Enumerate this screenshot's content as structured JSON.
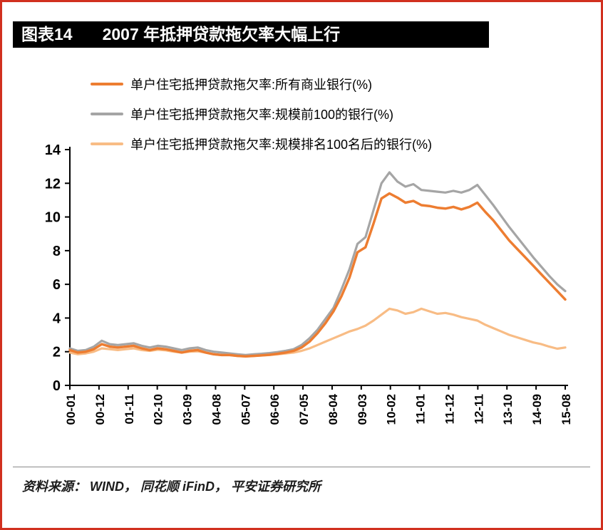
{
  "page": {
    "title_label": "图表14",
    "title_text": "2007 年抵押贷款拖欠率大幅上行",
    "source_text": "资料来源： WIND， 同花顺 iFinD， 平安证券研究所"
  },
  "colors": {
    "frame": "#d1301f",
    "title_bg": "#000000",
    "title_fg": "#ffffff",
    "axis": "#000000",
    "divider": "#8a8a8a"
  },
  "chart_data": {
    "type": "line",
    "title": "2007 年抵押贷款拖欠率大幅上行",
    "ylim": [
      0,
      14
    ],
    "y_ticks": [
      0,
      2,
      4,
      6,
      8,
      10,
      12,
      14
    ],
    "x_tick_labels": [
      "00-01",
      "00-12",
      "01-11",
      "02-10",
      "03-09",
      "04-08",
      "05-07",
      "06-06",
      "07-05",
      "08-04",
      "09-03",
      "10-02",
      "11-01",
      "11-12",
      "12-11",
      "13-10",
      "14-09",
      "15-08"
    ],
    "grid": false,
    "legend_position": "top-left",
    "series": [
      {
        "name": "单户住宅抵押贷款拖欠率:所有商业银行(%)",
        "color": "#ED7D31",
        "width": 3.5,
        "values": [
          2.1,
          1.95,
          2.0,
          2.15,
          2.45,
          2.3,
          2.25,
          2.3,
          2.35,
          2.2,
          2.1,
          2.2,
          2.15,
          2.05,
          1.95,
          2.05,
          2.1,
          1.95,
          1.85,
          1.8,
          1.8,
          1.75,
          1.72,
          1.75,
          1.78,
          1.82,
          1.88,
          1.95,
          2.05,
          2.25,
          2.6,
          3.1,
          3.7,
          4.4,
          5.3,
          6.4,
          7.9,
          8.2,
          9.6,
          11.1,
          11.4,
          11.15,
          10.85,
          10.95,
          10.7,
          10.65,
          10.55,
          10.5,
          10.6,
          10.45,
          10.6,
          10.85,
          10.3,
          9.8,
          9.2,
          8.6,
          8.1,
          7.6,
          7.1,
          6.6,
          6.1,
          5.6,
          5.1
        ]
      },
      {
        "name": "单户住宅抵押贷款拖欠率:规模前100的银行(%)",
        "color": "#A5A5A5",
        "width": 3.2,
        "values": [
          2.2,
          2.05,
          2.1,
          2.3,
          2.65,
          2.45,
          2.4,
          2.45,
          2.5,
          2.35,
          2.25,
          2.35,
          2.3,
          2.2,
          2.1,
          2.2,
          2.25,
          2.1,
          2.0,
          1.95,
          1.9,
          1.85,
          1.8,
          1.85,
          1.88,
          1.92,
          1.98,
          2.05,
          2.15,
          2.4,
          2.8,
          3.3,
          3.95,
          4.6,
          5.7,
          6.9,
          8.4,
          8.8,
          10.4,
          12.0,
          12.65,
          12.1,
          11.8,
          11.95,
          11.6,
          11.55,
          11.5,
          11.45,
          11.55,
          11.45,
          11.6,
          11.9,
          11.3,
          10.7,
          10.05,
          9.4,
          8.8,
          8.2,
          7.6,
          7.05,
          6.5,
          6.0,
          5.6
        ]
      },
      {
        "name": "单户住宅抵押贷款拖欠率:规模排名100名后的银行(%)",
        "color": "#F8BC85",
        "width": 3.2,
        "values": [
          1.95,
          1.85,
          1.9,
          2.0,
          2.2,
          2.15,
          2.1,
          2.15,
          2.2,
          2.1,
          2.05,
          2.12,
          2.08,
          2.0,
          1.95,
          2.0,
          2.02,
          1.95,
          1.85,
          1.8,
          1.8,
          1.75,
          1.72,
          1.75,
          1.78,
          1.8,
          1.85,
          1.9,
          1.95,
          2.05,
          2.2,
          2.4,
          2.6,
          2.8,
          3.0,
          3.2,
          3.35,
          3.55,
          3.85,
          4.2,
          4.55,
          4.45,
          4.25,
          4.35,
          4.55,
          4.4,
          4.25,
          4.3,
          4.2,
          4.05,
          3.95,
          3.85,
          3.6,
          3.4,
          3.2,
          3.0,
          2.85,
          2.7,
          2.55,
          2.45,
          2.3,
          2.18,
          2.25
        ]
      }
    ]
  }
}
